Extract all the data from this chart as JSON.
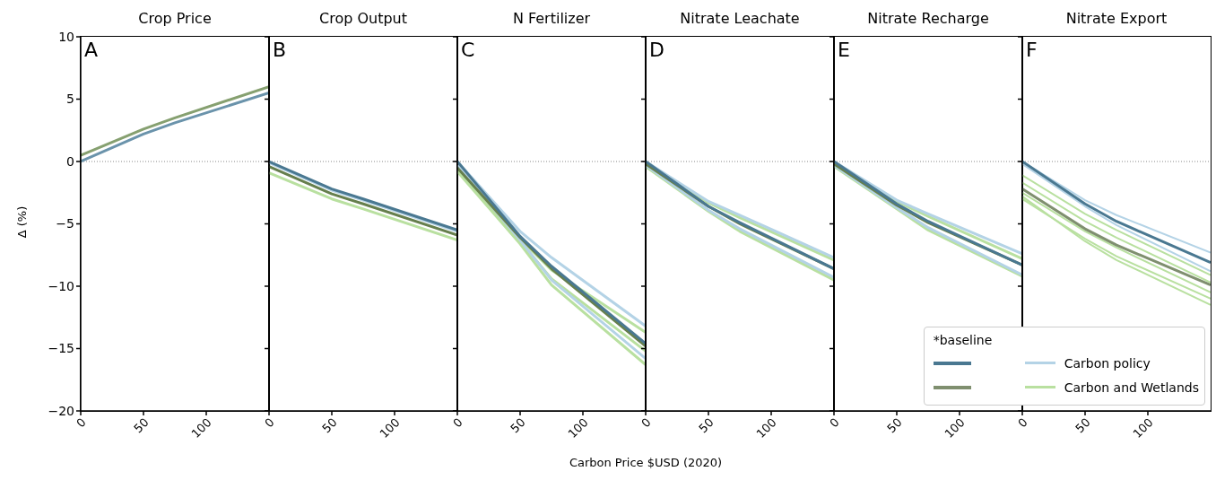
{
  "chart_data": [
    {
      "type": "line",
      "title": "Crop Price",
      "ylabel": "Δ (%)",
      "annotations": [
        "A"
      ],
      "x": [
        0,
        50,
        75,
        150
      ],
      "xlim": [
        0,
        150
      ],
      "xticks": [
        0,
        50,
        100
      ],
      "ylim": [
        -20,
        10
      ],
      "yticks": [
        -20,
        -15,
        -10,
        -5,
        0,
        5,
        10
      ],
      "grid": false,
      "legend": false,
      "ref_lines": [
        {
          "axis": "y",
          "value": 0,
          "color": "#888888",
          "line_style": "dotted"
        }
      ],
      "series": [
        {
          "color": "#86a070",
          "values": [
            0.5,
            2.6,
            3.5,
            6.0
          ]
        },
        {
          "color": "#6a93ab",
          "values": [
            0,
            2.2,
            3.1,
            5.5
          ]
        }
      ]
    },
    {
      "type": "line",
      "title": "Crop Output",
      "annotations": [
        "B"
      ],
      "x": [
        0,
        50,
        75,
        150
      ],
      "xlim": [
        0,
        150
      ],
      "xticks": [
        0,
        50,
        100
      ],
      "ylim": [
        -20,
        10
      ],
      "yticks": [
        -20,
        -15,
        -10,
        -5,
        0,
        5,
        10
      ],
      "tick_labels": "x",
      "grid": false,
      "legend": false,
      "ref_lines": [
        {
          "axis": "y",
          "value": 0,
          "color": "#888888",
          "line_style": "dotted"
        }
      ],
      "series": [
        {
          "color": "#b9e0a0",
          "values": [
            -0.9,
            -3.0,
            -3.8,
            -6.3
          ]
        },
        {
          "color": "#b4d3e6",
          "values": [
            -0.1,
            -2.3,
            -3.1,
            -5.6
          ]
        },
        {
          "color": "#667f4d",
          "values": [
            -0.4,
            -2.6,
            -3.4,
            -5.9
          ]
        },
        {
          "color": "#4a7891",
          "values": [
            0,
            -2.2,
            -3.0,
            -5.5
          ]
        }
      ]
    },
    {
      "type": "line",
      "title": "N Fertilizer",
      "xlabel": "Carbon Price $USD (2020)",
      "annotations": [
        "C"
      ],
      "x": [
        0,
        50,
        75,
        150
      ],
      "xlim": [
        0,
        150
      ],
      "xticks": [
        0,
        50,
        100
      ],
      "ylim": [
        -20,
        10
      ],
      "yticks": [
        -20,
        -15,
        -10,
        -5,
        0,
        5,
        10
      ],
      "tick_labels": "x",
      "grid": false,
      "legend": false,
      "ref_lines": [
        {
          "axis": "y",
          "value": 0,
          "color": "#888888",
          "line_style": "dotted"
        }
      ],
      "series": [
        {
          "color": "#b9e0a0",
          "values": [
            -0.8,
            -6.6,
            -9.9,
            -16.3
          ]
        },
        {
          "color": "#b9e0a0",
          "values": [
            -0.5,
            -6.2,
            -8.7,
            -13.7
          ]
        },
        {
          "color": "#b9e0a0",
          "values": [
            -0.6,
            -6.4,
            -9.4,
            -15.2
          ]
        },
        {
          "color": "#b4d3e6",
          "values": [
            0,
            -5.6,
            -7.7,
            -13.2
          ]
        },
        {
          "color": "#b4d3e6",
          "values": [
            -0.3,
            -6.3,
            -9.5,
            -15.8
          ]
        },
        {
          "color": "#667f4d",
          "values": [
            -0.5,
            -6.1,
            -8.6,
            -14.8
          ]
        },
        {
          "color": "#4a7891",
          "values": [
            0,
            -6.0,
            -8.4,
            -14.6
          ]
        }
      ]
    },
    {
      "type": "line",
      "title": "Nitrate Leachate",
      "annotations": [
        "D"
      ],
      "x": [
        0,
        50,
        75,
        150
      ],
      "xlim": [
        0,
        150
      ],
      "xticks": [
        0,
        50,
        100
      ],
      "ylim": [
        -20,
        10
      ],
      "yticks": [
        -20,
        -15,
        -10,
        -5,
        0,
        5,
        10
      ],
      "tick_labels": "x",
      "grid": false,
      "legend": false,
      "ref_lines": [
        {
          "axis": "y",
          "value": 0,
          "color": "#888888",
          "line_style": "dotted"
        }
      ],
      "series": [
        {
          "color": "#b9e0a0",
          "values": [
            -0.4,
            -4.0,
            -5.6,
            -9.5
          ]
        },
        {
          "color": "#b9e0a0",
          "values": [
            -0.1,
            -3.3,
            -4.5,
            -7.9
          ]
        },
        {
          "color": "#b4d3e6",
          "values": [
            0,
            -3.2,
            -4.3,
            -7.7
          ]
        },
        {
          "color": "#b4d3e6",
          "values": [
            -0.3,
            -3.9,
            -5.4,
            -9.3
          ]
        },
        {
          "color": "#667f4d",
          "values": [
            -0.2,
            -3.6,
            -5.0,
            -8.6
          ]
        },
        {
          "color": "#4a7891",
          "values": [
            0,
            -3.6,
            -4.9,
            -8.6
          ]
        }
      ]
    },
    {
      "type": "line",
      "title": "Nitrate Recharge",
      "annotations": [
        "E"
      ],
      "x": [
        0,
        50,
        75,
        150
      ],
      "xlim": [
        0,
        150
      ],
      "xticks": [
        0,
        50,
        100
      ],
      "ylim": [
        -20,
        10
      ],
      "yticks": [
        -20,
        -15,
        -10,
        -5,
        0,
        5,
        10
      ],
      "tick_labels": "x",
      "grid": false,
      "legend": false,
      "ref_lines": [
        {
          "axis": "y",
          "value": 0,
          "color": "#888888",
          "line_style": "dotted"
        }
      ],
      "series": [
        {
          "color": "#b9e0a0",
          "values": [
            -0.4,
            -3.8,
            -5.5,
            -9.2
          ]
        },
        {
          "color": "#b9e0a0",
          "values": [
            -0.1,
            -3.2,
            -4.4,
            -7.8
          ]
        },
        {
          "color": "#b4d3e6",
          "values": [
            0,
            -3.1,
            -4.2,
            -7.4
          ]
        },
        {
          "color": "#b4d3e6",
          "values": [
            -0.3,
            -3.7,
            -5.3,
            -9.1
          ]
        },
        {
          "color": "#667f4d",
          "values": [
            -0.2,
            -3.5,
            -4.9,
            -8.3
          ]
        },
        {
          "color": "#4a7891",
          "values": [
            0,
            -3.4,
            -4.8,
            -8.3
          ]
        }
      ]
    },
    {
      "type": "line",
      "title": "Nitrate Export",
      "annotations": [
        "F"
      ],
      "x": [
        0,
        50,
        75,
        150
      ],
      "xlim": [
        0,
        150
      ],
      "xticks": [
        0,
        50,
        100
      ],
      "ylim": [
        -20,
        10
      ],
      "yticks": [
        -20,
        -15,
        -10,
        -5,
        0,
        5,
        10
      ],
      "tick_labels": "x",
      "grid": false,
      "legend": "bottom right",
      "legend_title": "*baseline",
      "ref_lines": [
        {
          "axis": "y",
          "value": 0,
          "color": "#888888",
          "line_style": "dotted"
        }
      ],
      "series": [
        {
          "name": "Carbon policy",
          "color": "#b4d3e6",
          "values": [
            0,
            -3.1,
            -4.3,
            -7.3
          ]
        },
        {
          "name": "Carbon and Wetlands",
          "color": "#b9e0a0",
          "values": [
            -1.1,
            -4.2,
            -5.5,
            -9.1
          ]
        },
        {
          "color": "#b9e0a0",
          "values": [
            -1.7,
            -4.8,
            -6.1,
            -9.7
          ]
        },
        {
          "color": "#b9e0a0",
          "values": [
            -2.5,
            -5.6,
            -6.9,
            -10.5
          ]
        },
        {
          "color": "#b9e0a0",
          "values": [
            -3.0,
            -6.2,
            -7.6,
            -11.0
          ]
        },
        {
          "color": "#b9e0a0",
          "values": [
            -2.8,
            -6.4,
            -7.9,
            -11.5
          ]
        },
        {
          "color": "#b4d3e6",
          "values": [
            -0.2,
            -3.6,
            -5.1,
            -8.8
          ]
        },
        {
          "color": "#4a7891",
          "values": [
            0,
            -3.4,
            -4.8,
            -8.1
          ]
        },
        {
          "color": "#7f8f6f",
          "values": [
            -2.2,
            -5.4,
            -6.7,
            -9.9
          ]
        }
      ]
    }
  ]
}
